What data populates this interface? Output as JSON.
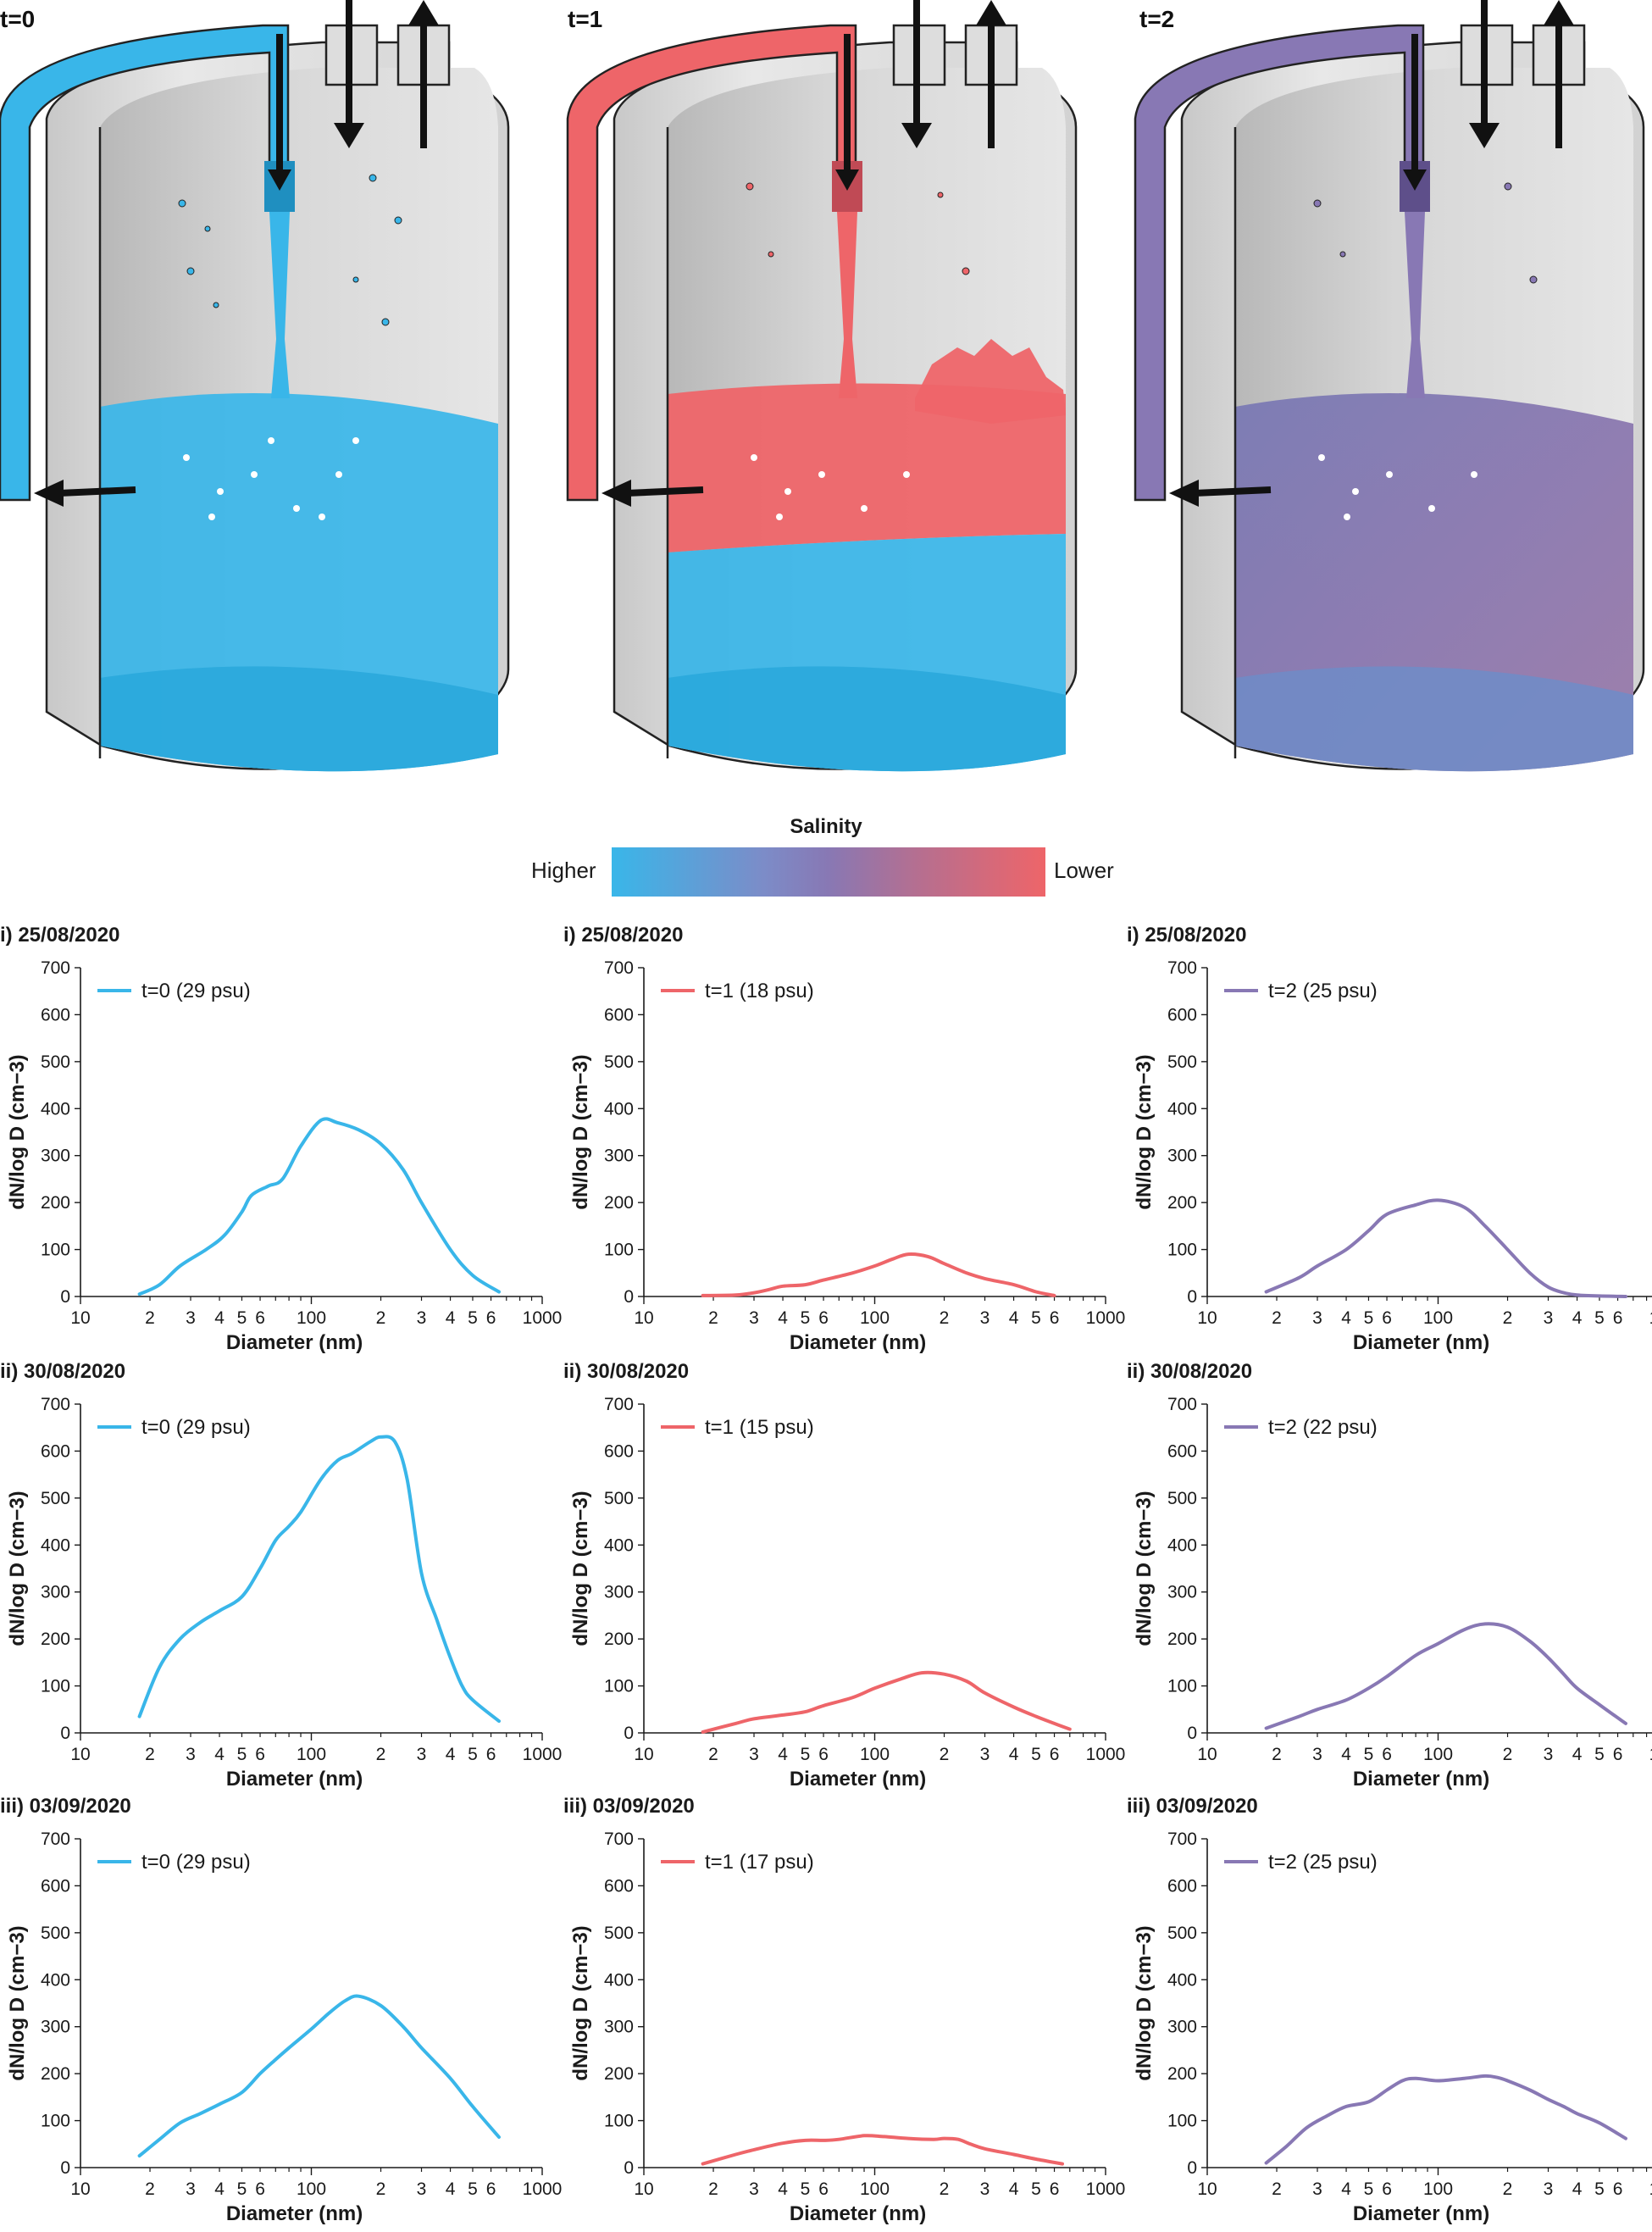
{
  "colors": {
    "t0": "#39b6e9",
    "t1": "#ee6569",
    "t2": "#8878b4",
    "tank_wall": "#e2e2e2"
  },
  "tank_labels": [
    "t=0",
    "t=1",
    "t=2"
  ],
  "salinity": {
    "title": "Salinity",
    "left": "Higher",
    "right": "Lower"
  },
  "axis": {
    "xlabel": "Diameter (nm)",
    "ylabel": "dN/log D (cm−3)"
  },
  "chart_data": [
    {
      "type": "line",
      "title": "i) 25/08/2020",
      "series": [
        {
          "name": "t=0 (29 psu)",
          "color": "#39b6e9",
          "x": [
            18,
            22,
            27,
            35,
            42,
            50,
            55,
            65,
            75,
            90,
            110,
            130,
            160,
            200,
            250,
            300,
            400,
            500,
            650
          ],
          "y": [
            5,
            25,
            65,
            100,
            130,
            180,
            215,
            235,
            250,
            320,
            375,
            370,
            355,
            325,
            270,
            200,
            100,
            45,
            10
          ]
        }
      ],
      "xlabel": "Diameter (nm)",
      "ylabel": "dN/log D (cm−3)",
      "xscale": "log",
      "xlim": [
        10,
        1000
      ],
      "ylim": [
        0,
        700
      ]
    },
    {
      "type": "line",
      "title": "i) 25/08/2020",
      "series": [
        {
          "name": "t=1 (18 psu)",
          "color": "#ee6569",
          "x": [
            18,
            25,
            30,
            35,
            40,
            50,
            60,
            80,
            100,
            120,
            140,
            170,
            200,
            250,
            300,
            400,
            500,
            600
          ],
          "y": [
            2,
            3,
            8,
            15,
            22,
            25,
            35,
            50,
            65,
            80,
            90,
            85,
            70,
            50,
            38,
            25,
            10,
            2
          ]
        }
      ],
      "xlabel": "Diameter (nm)",
      "ylabel": "dN/log D (cm−3)",
      "xscale": "log",
      "xlim": [
        10,
        1000
      ],
      "ylim": [
        0,
        700
      ]
    },
    {
      "type": "line",
      "title": "i) 25/08/2020",
      "series": [
        {
          "name": "t=2 (25 psu)",
          "color": "#8878b4",
          "x": [
            18,
            25,
            30,
            40,
            50,
            60,
            80,
            100,
            130,
            160,
            200,
            250,
            300,
            350,
            400,
            500,
            650
          ],
          "y": [
            10,
            40,
            65,
            100,
            140,
            175,
            195,
            205,
            190,
            150,
            100,
            50,
            20,
            8,
            3,
            1,
            0
          ]
        }
      ],
      "xlabel": "Diameter (nm)",
      "ylabel": "dN/log D (cm−3)",
      "xscale": "log",
      "xlim": [
        10,
        1000
      ],
      "ylim": [
        0,
        700
      ]
    },
    {
      "type": "line",
      "title": "ii) 30/08/2020",
      "series": [
        {
          "name": "t=0 (29 psu)",
          "color": "#39b6e9",
          "x": [
            18,
            22,
            27,
            33,
            40,
            50,
            60,
            70,
            80,
            90,
            110,
            130,
            150,
            180,
            200,
            230,
            260,
            300,
            350,
            400,
            450,
            500,
            650
          ],
          "y": [
            35,
            140,
            200,
            235,
            260,
            290,
            350,
            410,
            440,
            470,
            540,
            580,
            595,
            620,
            630,
            620,
            540,
            340,
            240,
            160,
            100,
            70,
            25
          ]
        }
      ],
      "xlabel": "Diameter (nm)",
      "ylabel": "dN/log D (cm−3)",
      "xscale": "log",
      "xlim": [
        10,
        1000
      ],
      "ylim": [
        0,
        700
      ]
    },
    {
      "type": "line",
      "title": "ii) 30/08/2020",
      "series": [
        {
          "name": "t=1 (15 psu)",
          "color": "#ee6569",
          "x": [
            18,
            25,
            30,
            40,
            50,
            60,
            80,
            100,
            130,
            160,
            200,
            250,
            300,
            400,
            500,
            600,
            700
          ],
          "y": [
            2,
            20,
            30,
            38,
            45,
            58,
            75,
            95,
            115,
            128,
            125,
            110,
            85,
            55,
            35,
            20,
            8
          ]
        }
      ],
      "xlabel": "Diameter (nm)",
      "ylabel": "dN/log D (cm−3)",
      "xscale": "log",
      "xlim": [
        10,
        1000
      ],
      "ylim": [
        0,
        700
      ]
    },
    {
      "type": "line",
      "title": "ii) 30/08/2020",
      "series": [
        {
          "name": "t=2 (22 psu)",
          "color": "#8878b4",
          "x": [
            18,
            25,
            30,
            40,
            50,
            60,
            80,
            100,
            130,
            160,
            200,
            250,
            300,
            350,
            400,
            500,
            650
          ],
          "y": [
            10,
            35,
            50,
            70,
            95,
            120,
            165,
            190,
            220,
            232,
            225,
            195,
            160,
            125,
            95,
            60,
            20
          ]
        }
      ],
      "xlabel": "Diameter (nm)",
      "ylabel": "dN/log D (cm−3)",
      "xscale": "log",
      "xlim": [
        10,
        1000
      ],
      "ylim": [
        0,
        700
      ]
    },
    {
      "type": "line",
      "title": "iii) 03/09/2020",
      "series": [
        {
          "name": "t=0 (29 psu)",
          "color": "#39b6e9",
          "x": [
            18,
            22,
            27,
            33,
            40,
            50,
            60,
            70,
            80,
            100,
            120,
            140,
            160,
            200,
            250,
            300,
            400,
            500,
            650
          ],
          "y": [
            25,
            60,
            95,
            115,
            135,
            160,
            200,
            230,
            255,
            295,
            330,
            355,
            365,
            345,
            300,
            255,
            190,
            130,
            65
          ]
        }
      ],
      "xlabel": "Diameter (nm)",
      "ylabel": "dN/log D (cm−3)",
      "xscale": "log",
      "xlim": [
        10,
        1000
      ],
      "ylim": [
        0,
        700
      ]
    },
    {
      "type": "line",
      "title": "iii) 03/09/2020",
      "series": [
        {
          "name": "t=1 (17 psu)",
          "color": "#ee6569",
          "x": [
            18,
            25,
            30,
            40,
            50,
            60,
            70,
            90,
            110,
            140,
            180,
            200,
            230,
            260,
            300,
            400,
            500,
            650
          ],
          "y": [
            8,
            28,
            38,
            52,
            58,
            58,
            60,
            68,
            66,
            62,
            60,
            62,
            60,
            50,
            40,
            28,
            18,
            8
          ]
        }
      ],
      "xlabel": "Diameter (nm)",
      "ylabel": "dN/log D (cm−3)",
      "xscale": "log",
      "xlim": [
        10,
        1000
      ],
      "ylim": [
        0,
        700
      ]
    },
    {
      "type": "line",
      "title": "iii) 03/09/2020",
      "series": [
        {
          "name": "t=2 (25 psu)",
          "color": "#8878b4",
          "x": [
            18,
            22,
            27,
            33,
            40,
            50,
            60,
            70,
            80,
            100,
            130,
            160,
            180,
            200,
            250,
            300,
            350,
            400,
            500,
            650
          ],
          "y": [
            10,
            45,
            85,
            110,
            130,
            140,
            165,
            185,
            190,
            185,
            190,
            195,
            192,
            185,
            165,
            145,
            130,
            115,
            95,
            62
          ]
        }
      ],
      "xlabel": "Diameter (nm)",
      "ylabel": "dN/log D (cm−3)",
      "xscale": "log",
      "xlim": [
        10,
        1000
      ],
      "ylim": [
        0,
        700
      ]
    }
  ]
}
